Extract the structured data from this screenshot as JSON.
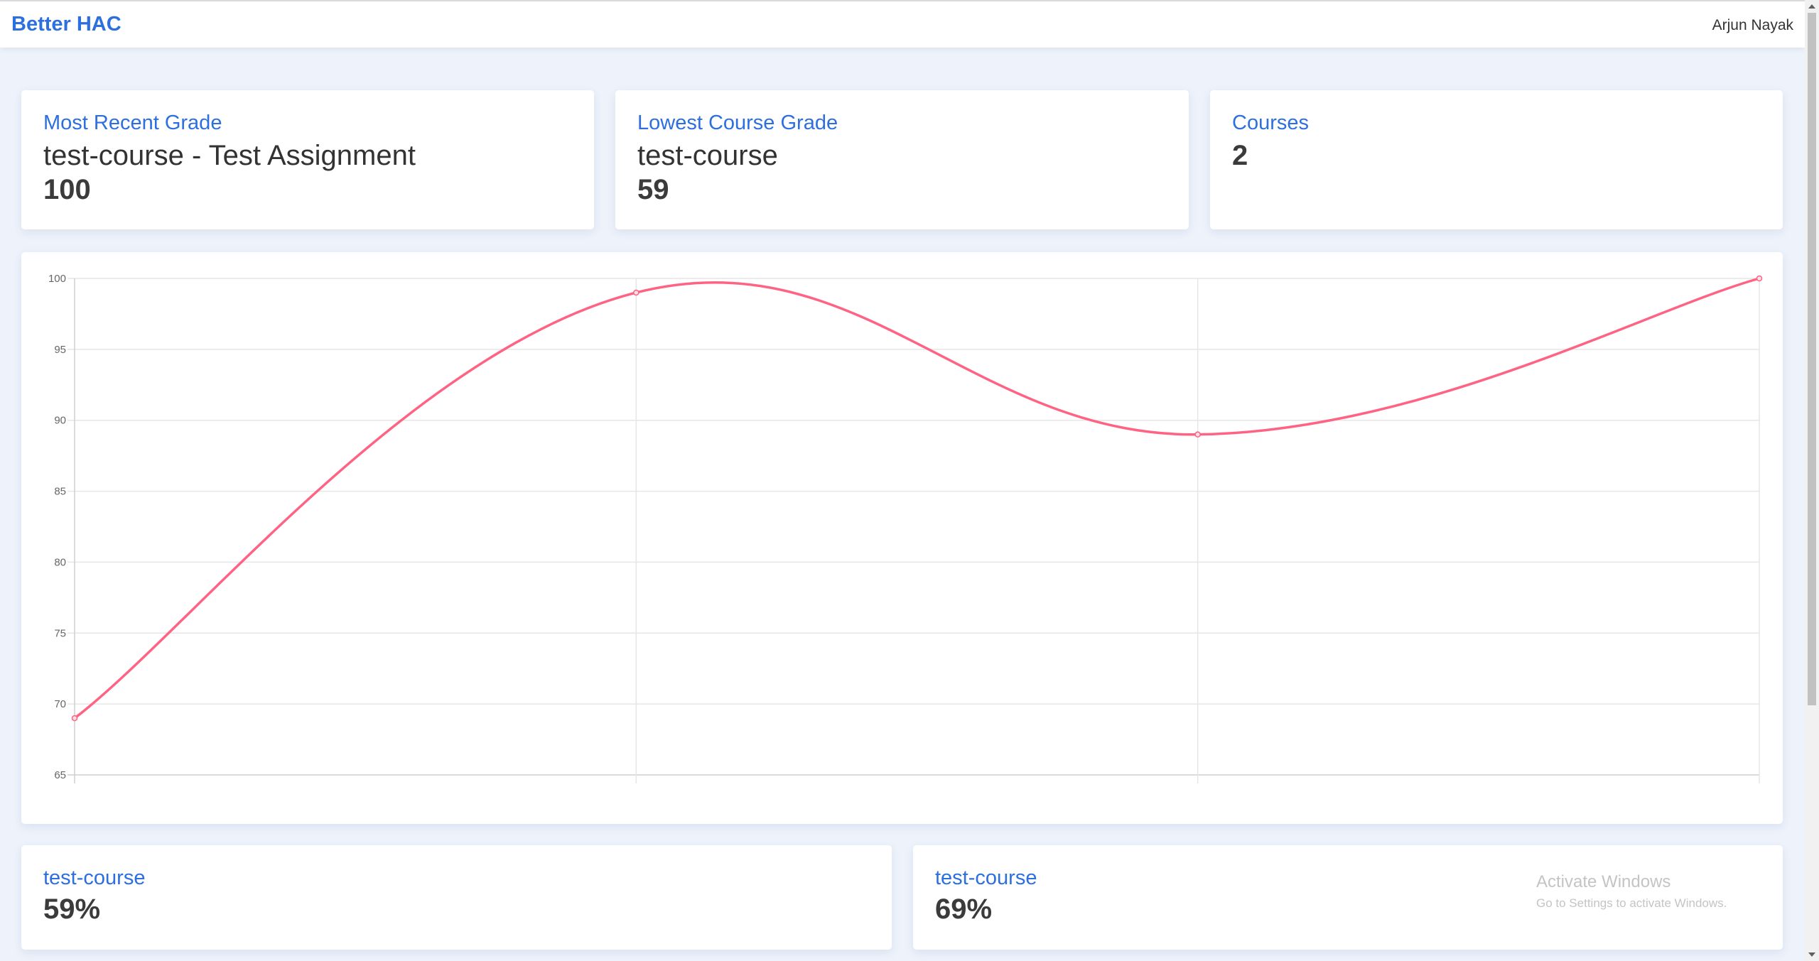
{
  "navbar": {
    "brand": "Better HAC",
    "user": "Arjun Nayak"
  },
  "summary_cards": [
    {
      "title": "Most Recent Grade",
      "subtitle": "test-course - Test Assignment",
      "value": "100"
    },
    {
      "title": "Lowest Course Grade",
      "subtitle": "test-course",
      "value": "59"
    },
    {
      "title": "Courses",
      "value": "2"
    }
  ],
  "chart_data": {
    "type": "line",
    "x": [
      "",
      "",
      "",
      ""
    ],
    "series": [
      {
        "values": [
          69,
          99,
          89,
          100
        ],
        "color": "#ff6384"
      }
    ],
    "ylim": [
      65,
      100
    ],
    "yticks": [
      100,
      95,
      90,
      85,
      80,
      75,
      70,
      65
    ],
    "grid": true,
    "curve": "smooth"
  },
  "course_cards": [
    {
      "title": "test-course",
      "value": "59%"
    },
    {
      "title": "test-course",
      "value": "69%"
    }
  ],
  "watermark": {
    "line1": "Activate Windows",
    "line2": "Go to Settings to activate Windows."
  },
  "colors": {
    "accent": "#2d6fde",
    "background": "#edf2fb",
    "line": "#ff6384"
  }
}
